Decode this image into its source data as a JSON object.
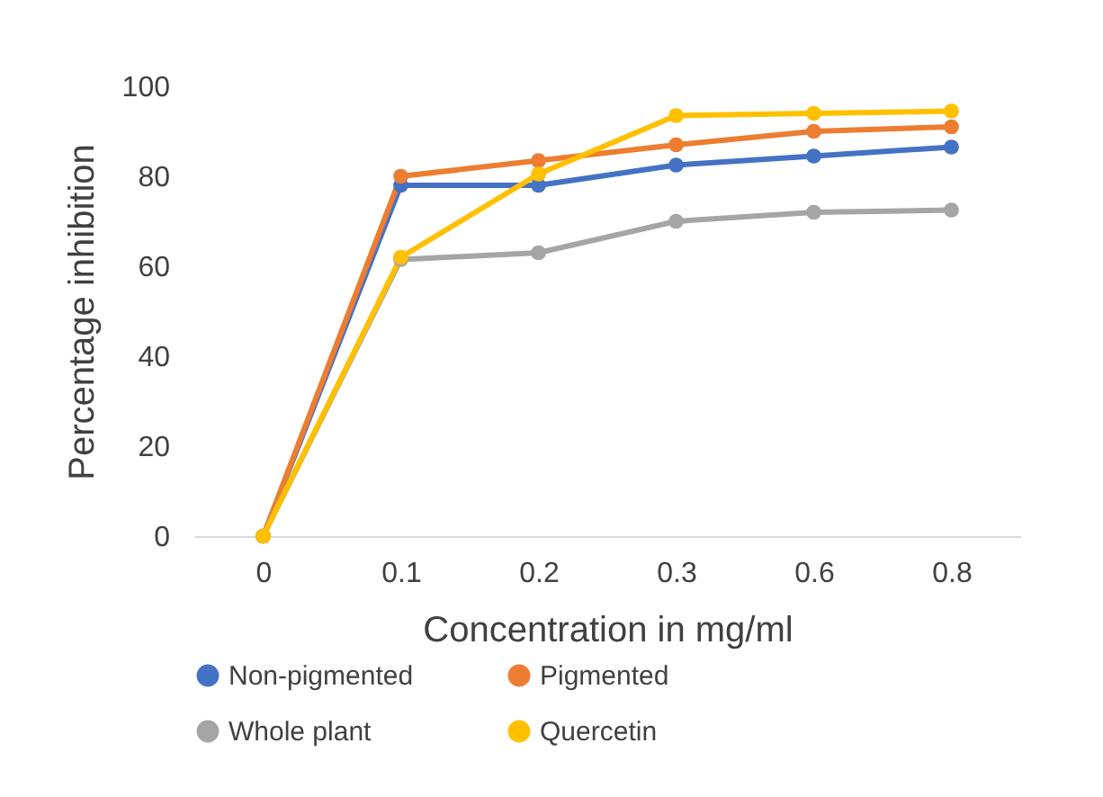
{
  "chart_data": {
    "type": "line",
    "xlabel": "Concentration in mg/ml",
    "ylabel": "Percentage inhibition",
    "categories": [
      "0",
      "0.1",
      "0.2",
      "0.3",
      "0.6",
      "0.8"
    ],
    "ylim": [
      0,
      100
    ],
    "yticks": [
      0,
      20,
      40,
      60,
      80,
      100
    ],
    "grid": false,
    "legend": "bottom",
    "marker": "circle",
    "line_style": "solid",
    "series": [
      {
        "name": "Non-pigmented",
        "color": "#4472c4",
        "values": [
          0,
          78,
          78,
          82.5,
          84.5,
          86.5
        ]
      },
      {
        "name": "Pigmented",
        "color": "#ed7d31",
        "values": [
          0,
          80,
          83.5,
          87,
          90,
          91
        ]
      },
      {
        "name": "Whole plant",
        "color": "#a5a5a5",
        "values": [
          0,
          61.5,
          63,
          70,
          72,
          72.5
        ]
      },
      {
        "name": "Quercetin",
        "color": "#ffc000",
        "values": [
          0,
          62,
          80.5,
          93.5,
          94,
          94.5
        ]
      }
    ]
  }
}
